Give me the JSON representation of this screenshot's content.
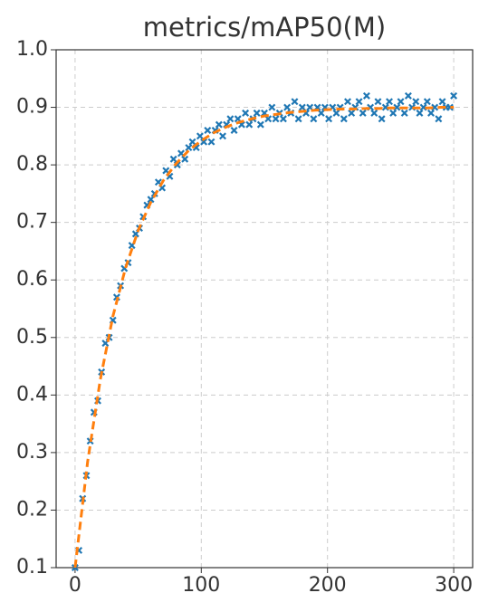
{
  "chart_data": {
    "type": "scatter",
    "title": "metrics/mAP50(M)",
    "xlim": [
      -15,
      315
    ],
    "xticks": [
      0,
      100,
      200,
      300
    ],
    "ylim": [
      0.1,
      1.0
    ],
    "yticks": [
      0.1,
      0.2,
      0.3,
      0.4,
      0.5,
      0.6,
      0.7,
      0.8,
      0.9,
      {
        "value": 1,
        "label": "1.0"
      }
    ],
    "grid": true,
    "series": [
      {
        "type": "scatter",
        "color": "#1f77b4",
        "x": [
          0,
          3,
          6,
          9,
          12,
          15,
          18,
          21,
          24,
          27,
          30,
          33,
          36,
          39,
          42,
          45,
          48,
          51,
          54,
          57,
          60,
          63,
          66,
          69,
          72,
          75,
          78,
          81,
          84,
          87,
          90,
          93,
          96,
          99,
          102,
          105,
          108,
          111,
          114,
          117,
          120,
          123,
          126,
          129,
          132,
          135,
          138,
          141,
          144,
          147,
          150,
          153,
          156,
          159,
          162,
          165,
          168,
          171,
          174,
          177,
          180,
          183,
          186,
          189,
          192,
          195,
          198,
          201,
          204,
          207,
          210,
          213,
          216,
          219,
          222,
          225,
          228,
          231,
          234,
          237,
          240,
          243,
          246,
          249,
          252,
          255,
          258,
          261,
          264,
          267,
          270,
          273,
          276,
          279,
          282,
          285,
          288,
          291,
          294,
          297,
          300
        ],
        "values": [
          0.1,
          0.13,
          0.22,
          0.26,
          0.32,
          0.37,
          0.39,
          0.44,
          0.49,
          0.5,
          0.53,
          0.57,
          0.59,
          0.62,
          0.63,
          0.66,
          0.68,
          0.69,
          0.71,
          0.73,
          0.74,
          0.75,
          0.77,
          0.76,
          0.79,
          0.78,
          0.81,
          0.8,
          0.82,
          0.81,
          0.83,
          0.84,
          0.83,
          0.85,
          0.84,
          0.86,
          0.84,
          0.86,
          0.87,
          0.85,
          0.87,
          0.88,
          0.86,
          0.88,
          0.87,
          0.89,
          0.87,
          0.88,
          0.89,
          0.87,
          0.89,
          0.88,
          0.9,
          0.88,
          0.89,
          0.88,
          0.9,
          0.89,
          0.91,
          0.88,
          0.9,
          0.89,
          0.9,
          0.88,
          0.9,
          0.89,
          0.9,
          0.88,
          0.9,
          0.89,
          0.9,
          0.88,
          0.91,
          0.89,
          0.9,
          0.91,
          0.89,
          0.92,
          0.9,
          0.89,
          0.91,
          0.88,
          0.9,
          0.91,
          0.89,
          0.9,
          0.91,
          0.89,
          0.92,
          0.9,
          0.91,
          0.89,
          0.9,
          0.91,
          0.89,
          0.9,
          0.88,
          0.91,
          0.9,
          0.9,
          0.92
        ]
      },
      {
        "type": "line",
        "color": "#ff7f0e",
        "dashed": true,
        "x": [
          0,
          10,
          20,
          30,
          40,
          50,
          60,
          70,
          80,
          90,
          100,
          110,
          120,
          130,
          140,
          150,
          160,
          170,
          180,
          190,
          200,
          210,
          220,
          230,
          240,
          250,
          260,
          270,
          280,
          290,
          300
        ],
        "values": [
          0.1,
          0.285,
          0.427,
          0.537,
          0.621,
          0.686,
          0.735,
          0.773,
          0.802,
          0.825,
          0.842,
          0.856,
          0.866,
          0.874,
          0.88,
          0.885,
          0.888,
          0.891,
          0.893,
          0.895,
          0.896,
          0.897,
          0.897,
          0.898,
          0.898,
          0.899,
          0.899,
          0.899,
          0.899,
          0.9,
          0.9
        ]
      }
    ]
  }
}
